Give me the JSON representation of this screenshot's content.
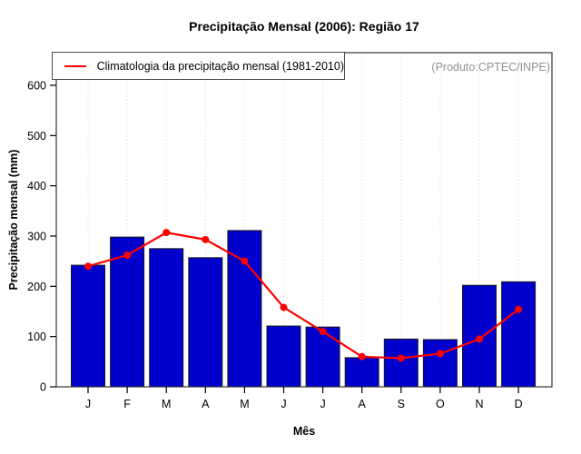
{
  "chart_data": {
    "type": "bar+line",
    "title": "Precipitação Mensal (2006): Região 17",
    "xlabel": "Mês",
    "ylabel": "Precipitação mensal (mm)",
    "annotation": "(Produto:CPTEC/INPE)",
    "categories": [
      "J",
      "F",
      "M",
      "A",
      "M",
      "J",
      "J",
      "A",
      "S",
      "O",
      "N",
      "D"
    ],
    "series": [
      {
        "name": "Precipitação Mensal (2006)",
        "type": "bar",
        "color": "#0000CD",
        "values": [
          242,
          298,
          275,
          257,
          311,
          121,
          119,
          58,
          95,
          94,
          202,
          209
        ]
      },
      {
        "name": "Climatologia da precipitação mensal (1981-2010)",
        "type": "line",
        "color": "#FF0000",
        "values": [
          240,
          262,
          307,
          293,
          250,
          158,
          110,
          60,
          57,
          66,
          95,
          154
        ]
      }
    ],
    "yticks": [
      0,
      100,
      200,
      300,
      400,
      500,
      600
    ],
    "ylim": [
      0,
      665
    ],
    "grid": "vertical-dotted",
    "legend_position": "top-left",
    "colors": {
      "bar": "#0000CD",
      "bar_border": "#1a1a1a",
      "line": "#FF0000",
      "grid": "#d9d9d9",
      "axis": "#333333",
      "tick": "#000000",
      "annotation": "#919191"
    }
  }
}
